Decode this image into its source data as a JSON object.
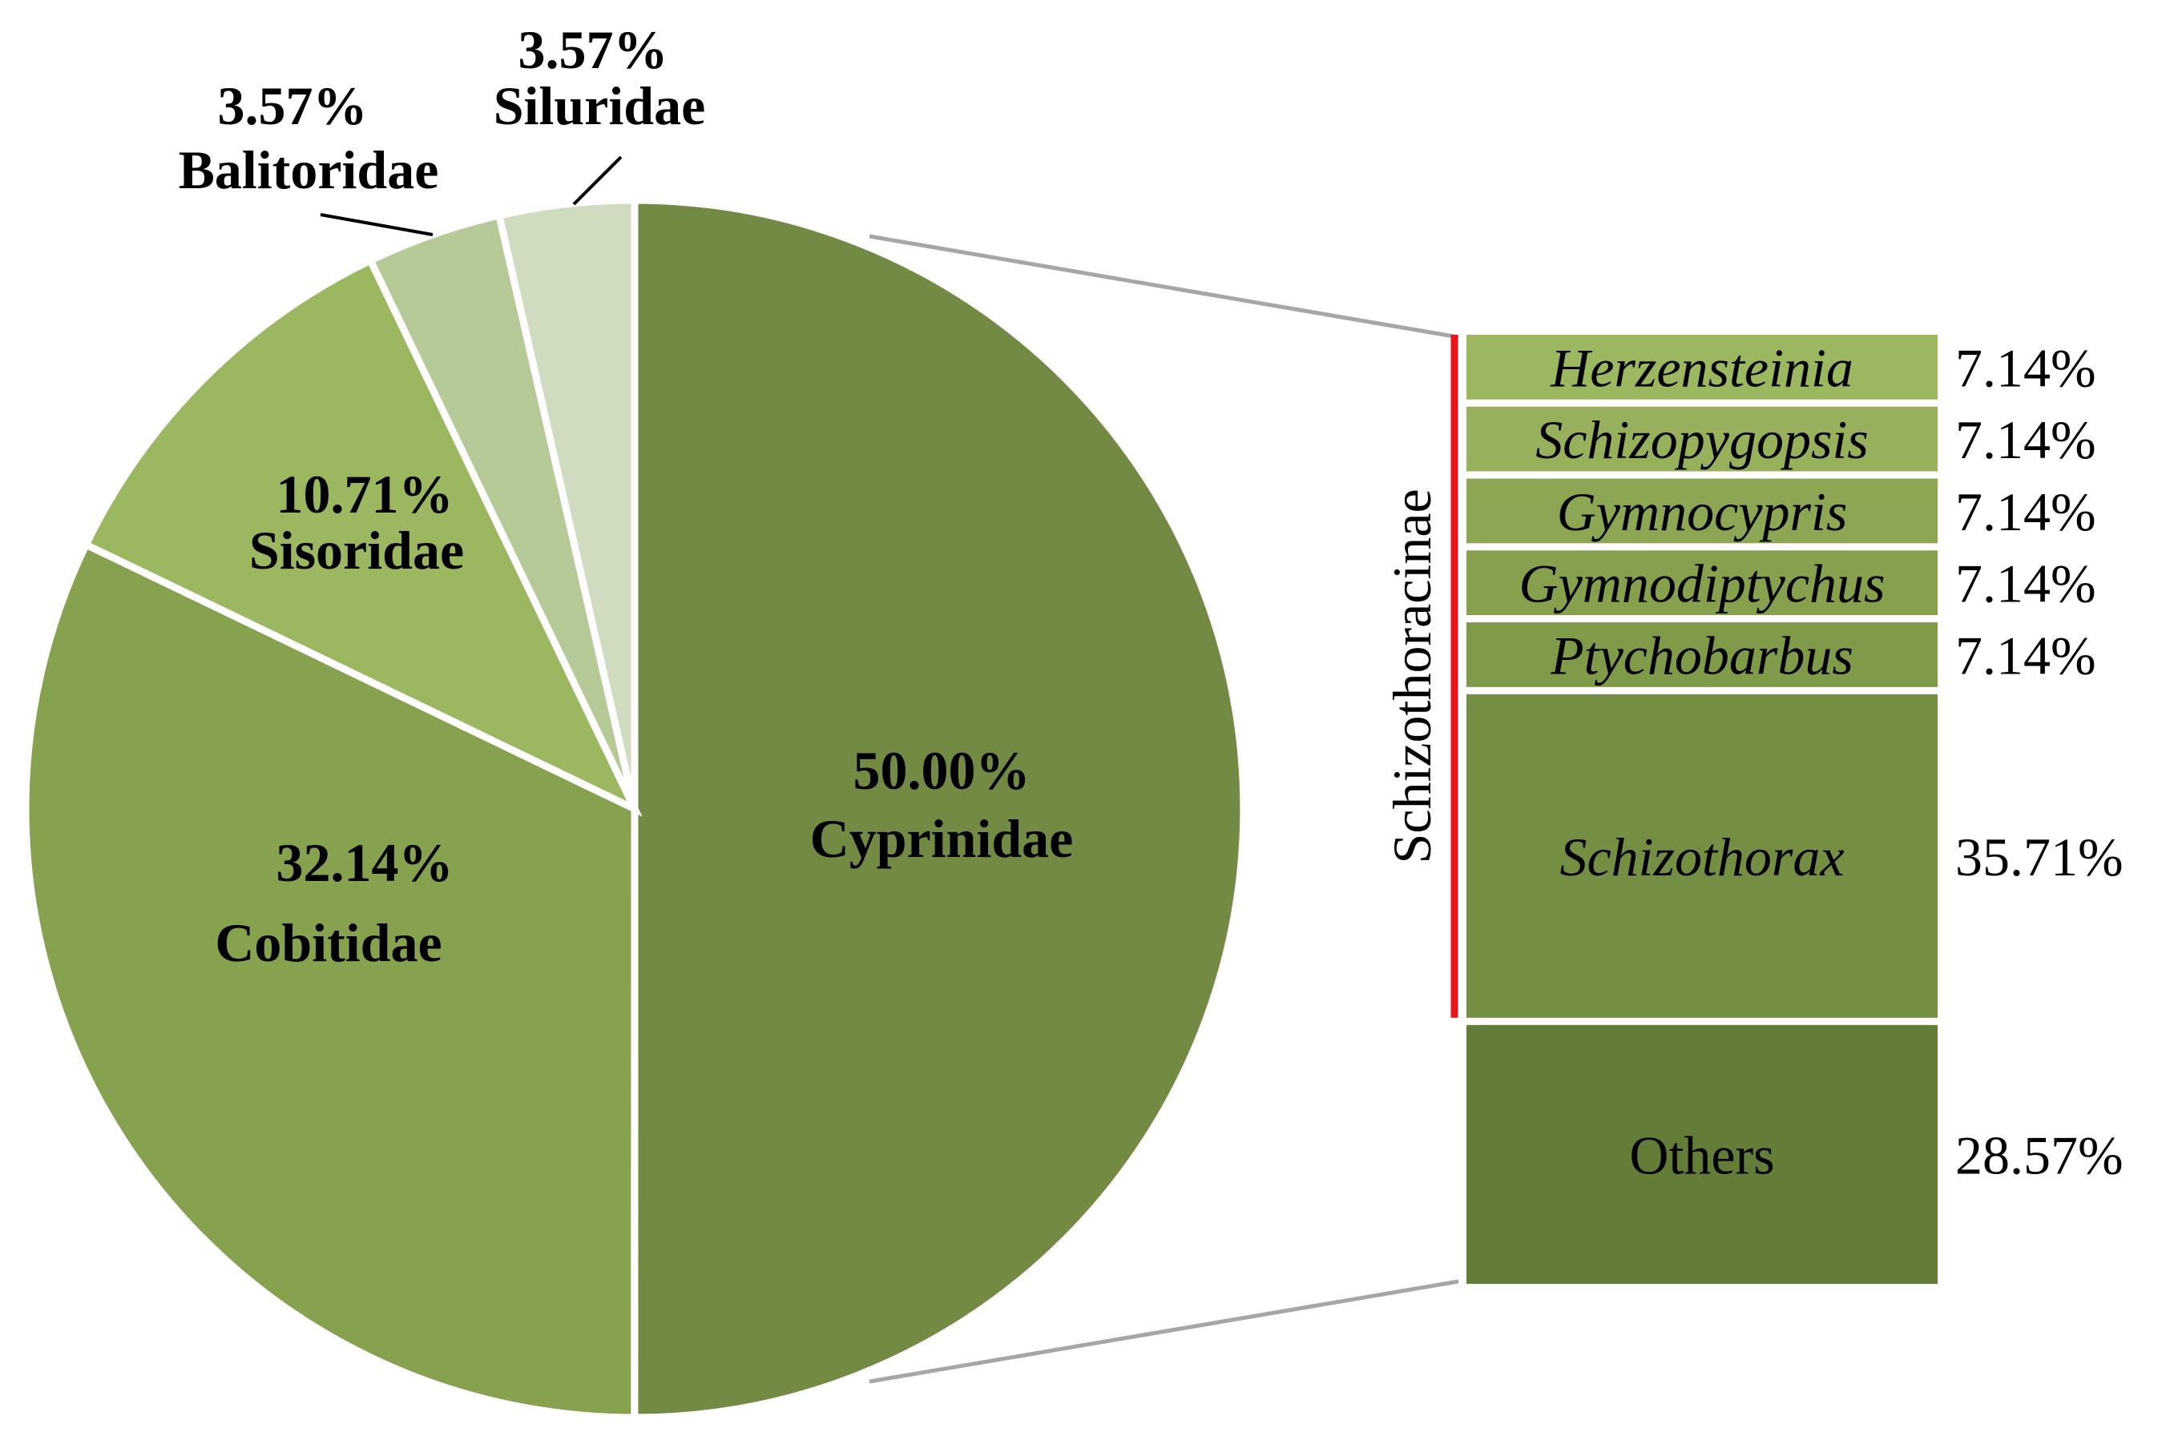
{
  "chart_data": {
    "type": "pie",
    "variant": "bar-of-pie",
    "pie": {
      "slices": [
        {
          "name": "Cyprinidae",
          "value": 50.0,
          "label": "50.00%",
          "color": "#728a43"
        },
        {
          "name": "Cobitidae",
          "value": 32.14,
          "label": "32.14%",
          "color": "#86a24f"
        },
        {
          "name": "Sisoridae",
          "value": 10.71,
          "label": "10.71%",
          "color": "#9bb75f"
        },
        {
          "name": "Balitoridae",
          "value": 3.57,
          "label": "3.57%",
          "color": "#b6ca98"
        },
        {
          "name": "Siluridae",
          "value": 3.57,
          "label": "3.57%",
          "color": "#d0dcbf"
        }
      ]
    },
    "bar": {
      "parent": "Cyprinidae",
      "group_label": "Schizothoracinae",
      "group_color": "#e8141a",
      "segments": [
        {
          "name": "Herzensteinia",
          "value": 7.14,
          "label": "7.14%",
          "italic": true,
          "in_group": true,
          "color": "#9bb75f"
        },
        {
          "name": "Schizopygopsis",
          "value": 7.14,
          "label": "7.14%",
          "italic": true,
          "in_group": true,
          "color": "#97b05c"
        },
        {
          "name": "Gymnocypris",
          "value": 7.14,
          "label": "7.14%",
          "italic": true,
          "in_group": true,
          "color": "#8ca653"
        },
        {
          "name": "Gymnodiptychus",
          "value": 7.14,
          "label": "7.14%",
          "italic": true,
          "in_group": true,
          "color": "#86a04e"
        },
        {
          "name": "Ptychobarbus",
          "value": 7.14,
          "label": "7.14%",
          "italic": true,
          "in_group": true,
          "color": "#7f9a49"
        },
        {
          "name": "Schizothorax",
          "value": 35.71,
          "label": "35.71%",
          "italic": true,
          "in_group": true,
          "color": "#748e43"
        },
        {
          "name": "Others",
          "value": 28.57,
          "label": "28.57%",
          "italic": false,
          "in_group": false,
          "color": "#637c38"
        }
      ]
    }
  }
}
